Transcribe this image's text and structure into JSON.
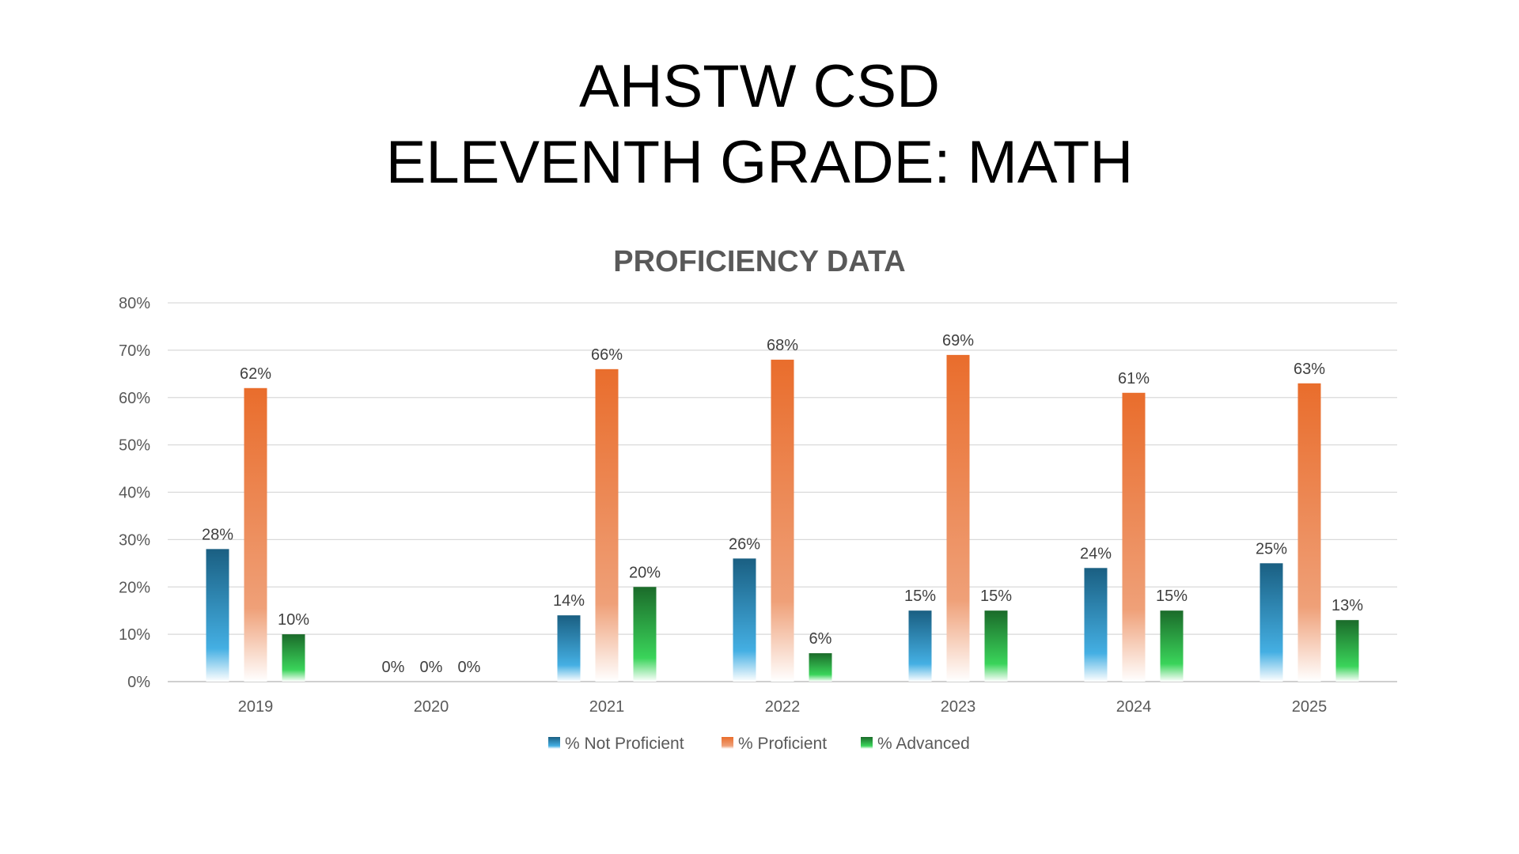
{
  "header": {
    "line1": "AHSTW CSD",
    "line2": "ELEVENTH GRADE: MATH"
  },
  "chart_data": {
    "type": "bar",
    "title": "PROFICIENCY DATA",
    "categories": [
      "2019",
      "2020",
      "2021",
      "2022",
      "2023",
      "2024",
      "2025"
    ],
    "series": [
      {
        "name": "% Not Proficient",
        "values": [
          28,
          0,
          14,
          26,
          15,
          24,
          25
        ],
        "colors": [
          "#1a5f82",
          "#44afe3",
          "#ffffff"
        ]
      },
      {
        "name": "% Proficient",
        "values": [
          62,
          0,
          66,
          68,
          69,
          61,
          63
        ],
        "colors": [
          "#e96d2c",
          "#efa078",
          "#ffffff"
        ]
      },
      {
        "name": "% Advanced",
        "values": [
          10,
          0,
          20,
          6,
          15,
          15,
          13
        ],
        "colors": [
          "#1b6b2a",
          "#3ad45a",
          "#ffffff"
        ]
      }
    ],
    "ylim": [
      0,
      80
    ],
    "yticks": [
      0,
      10,
      20,
      30,
      40,
      50,
      60,
      70,
      80
    ],
    "value_suffix": "%",
    "grid": true,
    "legend": "bottom"
  }
}
